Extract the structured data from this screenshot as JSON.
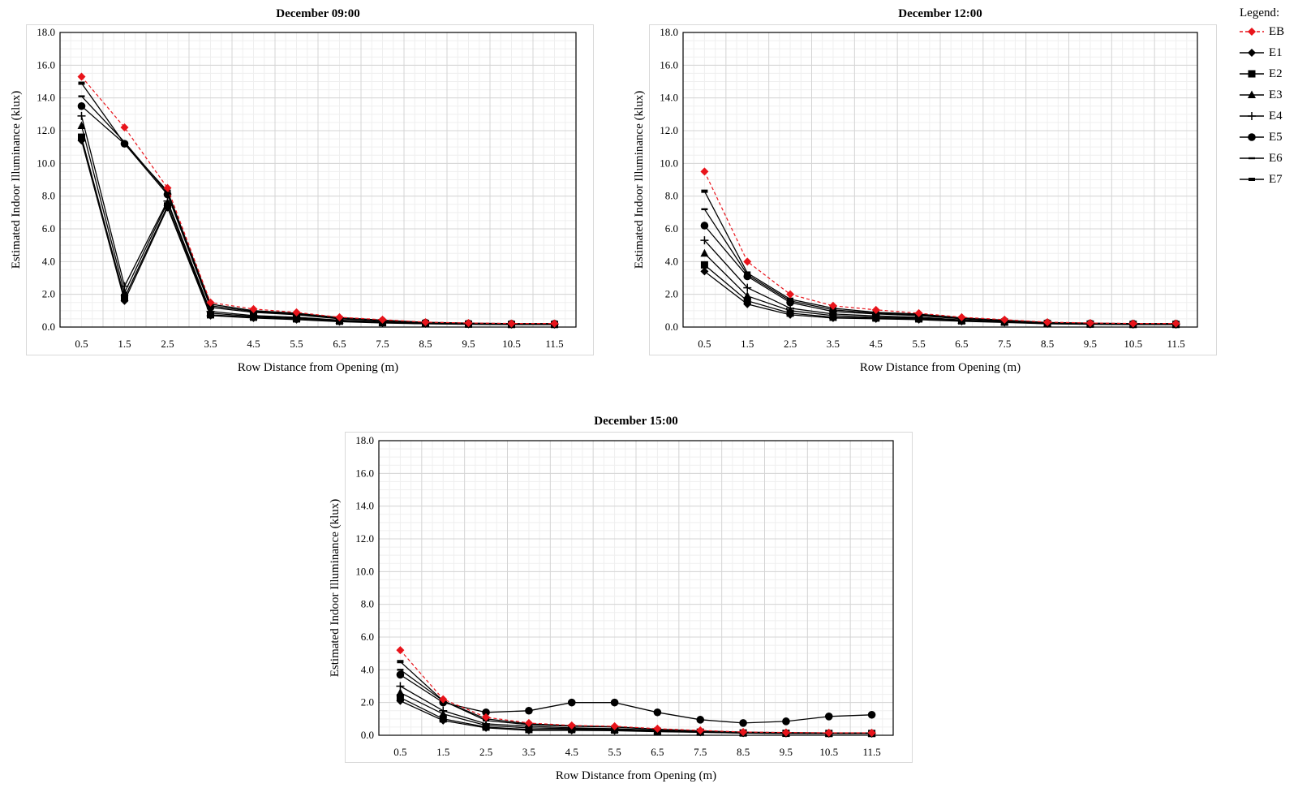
{
  "legend": {
    "title": "Legend:",
    "items": [
      {
        "id": "EB",
        "label": "EB",
        "marker": "diamond",
        "color": "#e8141b",
        "dash": true
      },
      {
        "id": "E1",
        "label": "E1",
        "marker": "diamond",
        "color": "#000000",
        "dash": false
      },
      {
        "id": "E2",
        "label": "E2",
        "marker": "square",
        "color": "#000000",
        "dash": false
      },
      {
        "id": "E3",
        "label": "E3",
        "marker": "triangle",
        "color": "#000000",
        "dash": false
      },
      {
        "id": "E4",
        "label": "E4",
        "marker": "plus",
        "color": "#000000",
        "dash": false
      },
      {
        "id": "E5",
        "label": "E5",
        "marker": "circle",
        "color": "#000000",
        "dash": false
      },
      {
        "id": "E6",
        "label": "E6",
        "marker": "dash",
        "color": "#000000",
        "dash": false
      },
      {
        "id": "E7",
        "label": "E7",
        "marker": "dash-bold",
        "color": "#000000",
        "dash": false
      }
    ]
  },
  "chart_data": [
    {
      "type": "line",
      "title": "December 09:00",
      "xlabel": "Row Distance from Opening (m)",
      "ylabel": "Estimated Indoor Illuminance (klux)",
      "ylim": [
        0,
        18
      ],
      "yticks": [
        "0.0",
        "2.0",
        "4.0",
        "6.0",
        "8.0",
        "10.0",
        "12.0",
        "14.0",
        "16.0",
        "18.0"
      ],
      "categories": [
        "0.5",
        "1.5",
        "2.5",
        "3.5",
        "4.5",
        "5.5",
        "6.5",
        "7.5",
        "8.5",
        "9.5",
        "10.5",
        "11.5"
      ],
      "grid": true,
      "series": [
        {
          "name": "EB",
          "values": [
            15.3,
            12.2,
            8.5,
            1.5,
            1.1,
            0.9,
            0.6,
            0.45,
            0.3,
            0.25,
            0.22,
            0.22
          ]
        },
        {
          "name": "E1",
          "values": [
            11.4,
            1.6,
            7.3,
            0.7,
            0.55,
            0.45,
            0.33,
            0.25,
            0.2,
            0.17,
            0.15,
            0.15
          ]
        },
        {
          "name": "E2",
          "values": [
            11.6,
            1.8,
            7.4,
            0.75,
            0.6,
            0.5,
            0.36,
            0.27,
            0.21,
            0.18,
            0.16,
            0.16
          ]
        },
        {
          "name": "E3",
          "values": [
            12.3,
            2.1,
            7.6,
            0.85,
            0.65,
            0.55,
            0.4,
            0.3,
            0.22,
            0.19,
            0.17,
            0.17
          ]
        },
        {
          "name": "E4",
          "values": [
            12.9,
            2.5,
            7.7,
            0.95,
            0.7,
            0.6,
            0.42,
            0.32,
            0.23,
            0.2,
            0.18,
            0.18
          ]
        },
        {
          "name": "E5",
          "values": [
            13.5,
            11.2,
            8.1,
            1.2,
            0.9,
            0.75,
            0.5,
            0.38,
            0.27,
            0.22,
            0.2,
            0.2
          ]
        },
        {
          "name": "E6",
          "values": [
            14.1,
            11.3,
            8.2,
            1.3,
            0.95,
            0.8,
            0.55,
            0.4,
            0.28,
            0.23,
            0.2,
            0.2
          ]
        },
        {
          "name": "E7",
          "values": [
            14.9,
            11.2,
            8.3,
            1.4,
            1.0,
            0.85,
            0.58,
            0.42,
            0.29,
            0.24,
            0.21,
            0.21
          ]
        }
      ]
    },
    {
      "type": "line",
      "title": "December 12:00",
      "xlabel": "Row Distance from Opening (m)",
      "ylabel": "Estimated Indoor Illuminance (klux)",
      "ylim": [
        0,
        18
      ],
      "yticks": [
        "0.0",
        "2.0",
        "4.0",
        "6.0",
        "8.0",
        "10.0",
        "12.0",
        "14.0",
        "16.0",
        "18.0"
      ],
      "categories": [
        "0.5",
        "1.5",
        "2.5",
        "3.5",
        "4.5",
        "5.5",
        "6.5",
        "7.5",
        "8.5",
        "9.5",
        "10.5",
        "11.5"
      ],
      "grid": true,
      "series": [
        {
          "name": "EB",
          "values": [
            9.5,
            4.0,
            2.0,
            1.3,
            1.05,
            0.85,
            0.6,
            0.45,
            0.3,
            0.25,
            0.22,
            0.22
          ]
        },
        {
          "name": "E1",
          "values": [
            3.4,
            1.4,
            0.75,
            0.55,
            0.5,
            0.45,
            0.35,
            0.28,
            0.2,
            0.17,
            0.15,
            0.15
          ]
        },
        {
          "name": "E2",
          "values": [
            3.8,
            1.6,
            0.85,
            0.6,
            0.55,
            0.5,
            0.38,
            0.3,
            0.21,
            0.18,
            0.16,
            0.16
          ]
        },
        {
          "name": "E3",
          "values": [
            4.5,
            1.9,
            1.0,
            0.7,
            0.6,
            0.55,
            0.4,
            0.31,
            0.22,
            0.19,
            0.17,
            0.17
          ]
        },
        {
          "name": "E4",
          "values": [
            5.3,
            2.4,
            1.15,
            0.8,
            0.68,
            0.6,
            0.43,
            0.33,
            0.23,
            0.2,
            0.18,
            0.18
          ]
        },
        {
          "name": "E5",
          "values": [
            6.2,
            3.1,
            1.5,
            0.95,
            0.8,
            0.7,
            0.5,
            0.38,
            0.26,
            0.22,
            0.2,
            0.2
          ]
        },
        {
          "name": "E6",
          "values": [
            7.2,
            3.2,
            1.6,
            1.05,
            0.85,
            0.75,
            0.53,
            0.4,
            0.27,
            0.23,
            0.2,
            0.2
          ]
        },
        {
          "name": "E7",
          "values": [
            8.3,
            3.3,
            1.7,
            1.15,
            0.9,
            0.8,
            0.56,
            0.42,
            0.28,
            0.24,
            0.21,
            0.21
          ]
        }
      ]
    },
    {
      "type": "line",
      "title": "December 15:00",
      "xlabel": "Row Distance from Opening (m)",
      "ylabel": "Estimated Indoor Illuminance (klux)",
      "ylim": [
        0,
        18
      ],
      "yticks": [
        "0.0",
        "2.0",
        "4.0",
        "6.0",
        "8.0",
        "10.0",
        "12.0",
        "14.0",
        "16.0",
        "18.0"
      ],
      "categories": [
        "0.5",
        "1.5",
        "2.5",
        "3.5",
        "4.5",
        "5.5",
        "6.5",
        "7.5",
        "8.5",
        "9.5",
        "10.5",
        "11.5"
      ],
      "grid": true,
      "series": [
        {
          "name": "EB",
          "values": [
            5.2,
            2.2,
            1.1,
            0.75,
            0.6,
            0.55,
            0.4,
            0.3,
            0.2,
            0.17,
            0.15,
            0.15
          ]
        },
        {
          "name": "E1",
          "values": [
            2.1,
            0.9,
            0.45,
            0.3,
            0.3,
            0.28,
            0.22,
            0.18,
            0.13,
            0.11,
            0.1,
            0.1
          ]
        },
        {
          "name": "E2",
          "values": [
            2.3,
            1.0,
            0.5,
            0.35,
            0.35,
            0.32,
            0.24,
            0.19,
            0.14,
            0.12,
            0.11,
            0.11
          ]
        },
        {
          "name": "E3",
          "values": [
            2.6,
            1.3,
            0.6,
            0.45,
            0.4,
            0.36,
            0.27,
            0.2,
            0.15,
            0.13,
            0.12,
            0.12
          ]
        },
        {
          "name": "E4",
          "values": [
            3.0,
            1.5,
            0.7,
            0.55,
            0.45,
            0.4,
            0.3,
            0.22,
            0.16,
            0.14,
            0.13,
            0.13
          ]
        },
        {
          "name": "E5",
          "values": [
            3.7,
            2.0,
            1.4,
            1.5,
            2.0,
            2.0,
            1.4,
            0.95,
            0.75,
            0.85,
            1.15,
            1.25
          ]
        },
        {
          "name": "E6",
          "values": [
            4.0,
            2.1,
            0.9,
            0.65,
            0.55,
            0.5,
            0.35,
            0.26,
            0.18,
            0.15,
            0.14,
            0.14
          ]
        },
        {
          "name": "E7",
          "values": [
            4.5,
            2.1,
            1.0,
            0.7,
            0.58,
            0.52,
            0.37,
            0.27,
            0.19,
            0.16,
            0.14,
            0.14
          ]
        }
      ]
    }
  ]
}
